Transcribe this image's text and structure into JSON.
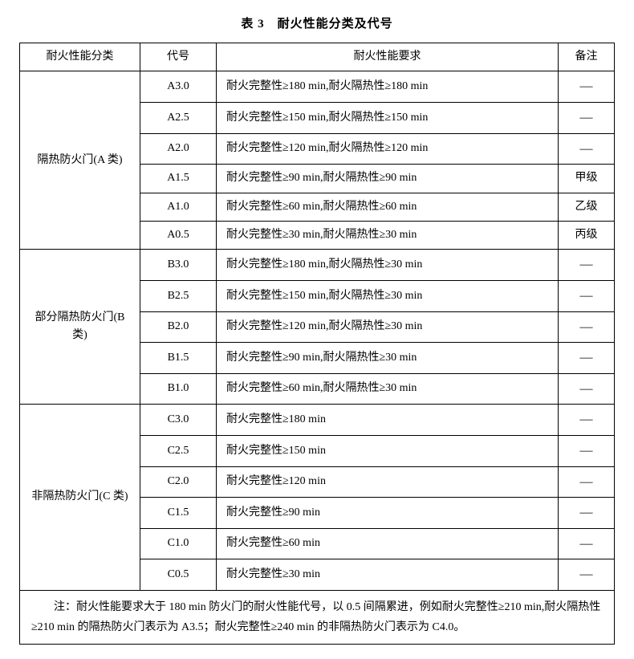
{
  "title": "表 3　耐火性能分类及代号",
  "headers": {
    "category": "耐火性能分类",
    "code": "代号",
    "requirement": "耐火性能要求",
    "note": "备注"
  },
  "groups": [
    {
      "category": "隔热防火门(A 类)",
      "rows": [
        {
          "code": "A3.0",
          "req": "耐火完整性≥180 min,耐火隔热性≥180 min",
          "note": "—"
        },
        {
          "code": "A2.5",
          "req": "耐火完整性≥150 min,耐火隔热性≥150 min",
          "note": "—"
        },
        {
          "code": "A2.0",
          "req": "耐火完整性≥120 min,耐火隔热性≥120 min",
          "note": "—"
        },
        {
          "code": "A1.5",
          "req": "耐火完整性≥90 min,耐火隔热性≥90 min",
          "note": "甲级"
        },
        {
          "code": "A1.0",
          "req": "耐火完整性≥60 min,耐火隔热性≥60 min",
          "note": "乙级"
        },
        {
          "code": "A0.5",
          "req": "耐火完整性≥30 min,耐火隔热性≥30 min",
          "note": "丙级"
        }
      ]
    },
    {
      "category": "部分隔热防火门(B 类)",
      "rows": [
        {
          "code": "B3.0",
          "req": "耐火完整性≥180 min,耐火隔热性≥30 min",
          "note": "—"
        },
        {
          "code": "B2.5",
          "req": "耐火完整性≥150 min,耐火隔热性≥30 min",
          "note": "—"
        },
        {
          "code": "B2.0",
          "req": "耐火完整性≥120 min,耐火隔热性≥30 min",
          "note": "—"
        },
        {
          "code": "B1.5",
          "req": "耐火完整性≥90 min,耐火隔热性≥30 min",
          "note": "—"
        },
        {
          "code": "B1.0",
          "req": "耐火完整性≥60 min,耐火隔热性≥30 min",
          "note": "—"
        }
      ]
    },
    {
      "category": "非隔热防火门(C 类)",
      "rows": [
        {
          "code": "C3.0",
          "req": "耐火完整性≥180 min",
          "note": "—"
        },
        {
          "code": "C2.5",
          "req": "耐火完整性≥150 min",
          "note": "—"
        },
        {
          "code": "C2.0",
          "req": "耐火完整性≥120 min",
          "note": "—"
        },
        {
          "code": "C1.5",
          "req": "耐火完整性≥90 min",
          "note": "—"
        },
        {
          "code": "C1.0",
          "req": "耐火完整性≥60 min",
          "note": "—"
        },
        {
          "code": "C0.5",
          "req": "耐火完整性≥30 min",
          "note": "—"
        }
      ]
    }
  ],
  "footnote": "注：耐火性能要求大于 180 min 防火门的耐火性能代号，以 0.5 间隔累进，例如耐火完整性≥210 min,耐火隔热性≥210 min 的隔热防火门表示为 A3.5；耐火完整性≥240 min 的非隔热防火门表示为 C4.0。"
}
